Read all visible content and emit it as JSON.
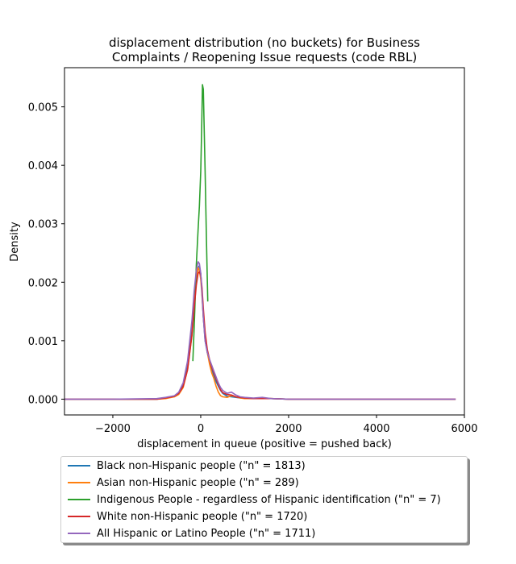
{
  "chart_data": {
    "type": "line",
    "title": "displacement distribution (no buckets)  for Business\nComplaints / Reopening Issue requests (code RBL)",
    "xlabel": "displacement in queue (positive = pushed back)",
    "ylabel": "Density",
    "xlim": [
      -3100,
      6000
    ],
    "ylim": [
      -0.00027,
      0.00567
    ],
    "xticks": [
      -2000,
      0,
      2000,
      4000,
      6000
    ],
    "xtick_labels": [
      "−2000",
      "0",
      "2000",
      "4000",
      "6000"
    ],
    "yticks": [
      0.0,
      0.001,
      0.002,
      0.003,
      0.004,
      0.005
    ],
    "ytick_labels": [
      "0.000",
      "0.001",
      "0.002",
      "0.003",
      "0.004",
      "0.005"
    ],
    "grid": false,
    "legend_position": "below-plot",
    "series": [
      {
        "name": "Black non-Hispanic people (\"n\" = 1813)",
        "color": "#1f77b4",
        "x": [
          -3100,
          -2000,
          -1000,
          -800,
          -600,
          -500,
          -400,
          -300,
          -200,
          -150,
          -100,
          -60,
          -30,
          0,
          30,
          60,
          100,
          150,
          200,
          250,
          300,
          350,
          400,
          450,
          500,
          600,
          700,
          800,
          900,
          1000,
          1200,
          1400,
          1600,
          2000,
          3000,
          4000,
          5000,
          5800
        ],
        "y": [
          0,
          0,
          0.0,
          2e-05,
          5e-05,
          0.0001,
          0.00025,
          0.0006,
          0.00125,
          0.00165,
          0.002,
          0.00225,
          0.00228,
          0.00215,
          0.0018,
          0.0014,
          0.001,
          0.0008,
          0.00065,
          0.00052,
          0.0004,
          0.0003,
          0.00022,
          0.00015,
          0.0001,
          5e-05,
          4e-05,
          3e-05,
          2e-05,
          2e-05,
          1e-05,
          1e-05,
          1e-05,
          0,
          0,
          0,
          0,
          0
        ]
      },
      {
        "name": "Asian non-Hispanic people (\"n\" = 289)",
        "color": "#ff7f0e",
        "x": [
          -3100,
          -2000,
          -1000,
          -800,
          -600,
          -500,
          -400,
          -300,
          -200,
          -150,
          -100,
          -60,
          -30,
          0,
          30,
          60,
          100,
          150,
          200,
          250,
          300,
          350,
          400,
          450,
          500,
          600,
          700,
          800,
          900,
          1000,
          1200,
          1400,
          1600,
          2000,
          3000,
          4000,
          5000,
          5800
        ],
        "y": [
          0,
          0,
          0.0,
          1e-05,
          4e-05,
          8e-05,
          0.0002,
          0.0005,
          0.0011,
          0.0016,
          0.00205,
          0.00225,
          0.0022,
          0.00205,
          0.00175,
          0.0014,
          0.00105,
          0.0008,
          0.0006,
          0.00045,
          0.00035,
          0.00022,
          0.00012,
          6e-05,
          4e-05,
          3e-05,
          6e-05,
          4e-05,
          2e-05,
          1e-05,
          1e-05,
          1e-05,
          1e-05,
          0,
          0,
          0,
          0,
          0
        ]
      },
      {
        "name": "Indigenous People - regardless of Hispanic identification (\"n\" = 7)",
        "color": "#2ca02c",
        "x": [
          -180,
          -140,
          -100,
          -60,
          -30,
          0,
          20,
          40,
          60,
          80,
          100,
          130,
          160
        ],
        "y": [
          0.00065,
          0.0014,
          0.0023,
          0.0029,
          0.0033,
          0.0039,
          0.0046,
          0.00538,
          0.0053,
          0.0046,
          0.0039,
          0.0027,
          0.00167
        ]
      },
      {
        "name": "White non-Hispanic people (\"n\" = 1720)",
        "color": "#d62728",
        "x": [
          -3100,
          -2000,
          -1000,
          -800,
          -600,
          -500,
          -400,
          -300,
          -200,
          -150,
          -100,
          -60,
          -30,
          0,
          30,
          60,
          100,
          150,
          200,
          250,
          300,
          350,
          400,
          450,
          500,
          600,
          700,
          800,
          900,
          1000,
          1200,
          1400,
          1600,
          2000,
          3000,
          4000,
          5000,
          5800
        ],
        "y": [
          0,
          0,
          0.0,
          2e-05,
          5e-05,
          0.0001,
          0.00022,
          0.0005,
          0.0011,
          0.00155,
          0.00195,
          0.00215,
          0.00218,
          0.00212,
          0.0019,
          0.00155,
          0.00115,
          0.00085,
          0.00068,
          0.00055,
          0.00045,
          0.00035,
          0.00025,
          0.00016,
          0.00011,
          8e-05,
          7e-05,
          4e-05,
          3e-05,
          2e-05,
          1e-05,
          1e-05,
          1e-05,
          0,
          0,
          0,
          0,
          0
        ]
      },
      {
        "name": "All Hispanic or Latino People (\"n\" = 1711)",
        "color": "#9467bd",
        "x": [
          -3100,
          -2000,
          -1000,
          -800,
          -600,
          -500,
          -400,
          -300,
          -200,
          -150,
          -100,
          -60,
          -30,
          0,
          30,
          60,
          100,
          150,
          200,
          250,
          300,
          350,
          400,
          450,
          500,
          600,
          700,
          800,
          900,
          1000,
          1200,
          1400,
          1600,
          2000,
          3000,
          4000,
          5000,
          5800
        ],
        "y": [
          0,
          0,
          1e-05,
          3e-05,
          6e-05,
          0.00012,
          0.00028,
          0.00065,
          0.00135,
          0.00185,
          0.0022,
          0.00235,
          0.00232,
          0.00215,
          0.0018,
          0.0014,
          0.001,
          0.0008,
          0.00068,
          0.00058,
          0.00048,
          0.00038,
          0.00028,
          0.0002,
          0.00015,
          0.0001,
          0.00012,
          7e-05,
          4e-05,
          3e-05,
          2e-05,
          3e-05,
          1e-05,
          0,
          0,
          0,
          0,
          0
        ]
      }
    ]
  }
}
